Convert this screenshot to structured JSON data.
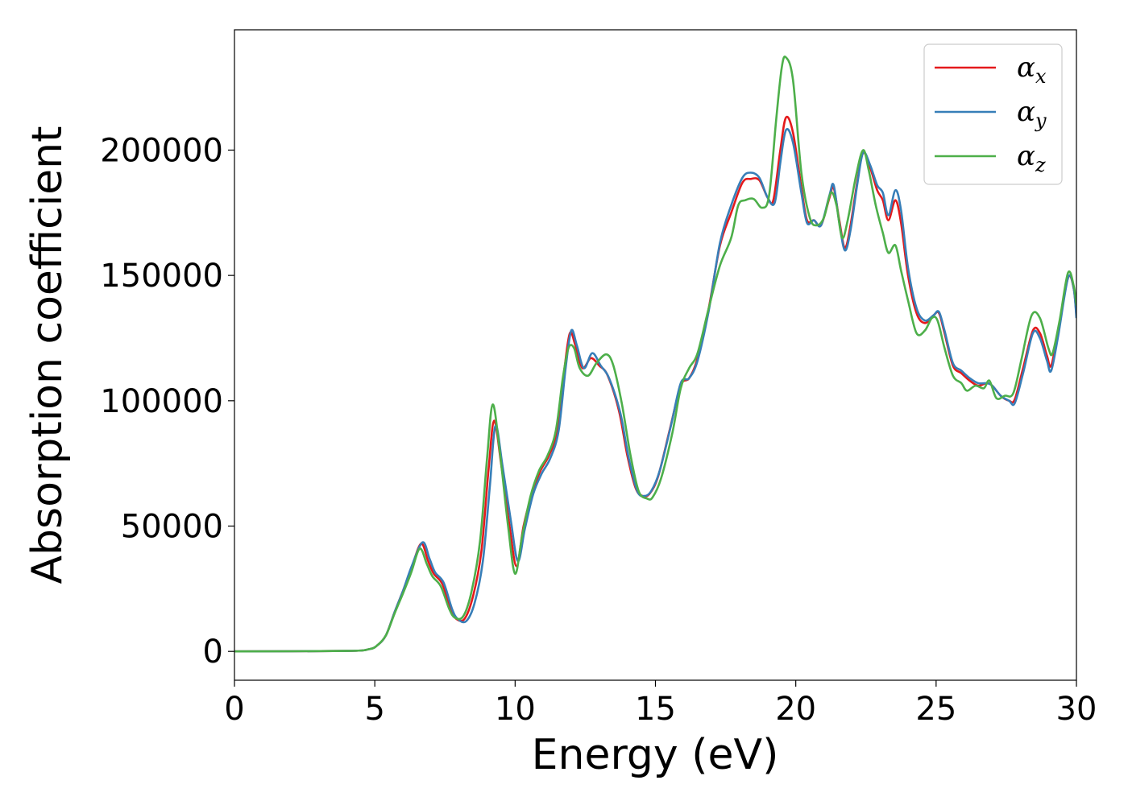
{
  "chart_data": {
    "type": "line",
    "xlabel": "Energy (eV)",
    "ylabel": "Absorption coefficient",
    "xlim": [
      0,
      30
    ],
    "ylim": [
      -11500,
      248000
    ],
    "x_ticks": [
      0,
      5,
      10,
      15,
      20,
      25,
      30
    ],
    "y_ticks": [
      0,
      50000,
      100000,
      150000,
      200000
    ],
    "grid": false,
    "legend_position": "top-right",
    "series": [
      {
        "name": "α",
        "subscript": "x",
        "color": "#e41a1c",
        "points": [
          [
            0,
            0
          ],
          [
            4,
            200
          ],
          [
            4.8,
            900
          ],
          [
            5.1,
            2500
          ],
          [
            5.4,
            6500
          ],
          [
            5.7,
            15500
          ],
          [
            6.0,
            24000
          ],
          [
            6.3,
            33000
          ],
          [
            6.65,
            43000
          ],
          [
            6.9,
            36000
          ],
          [
            7.1,
            31000
          ],
          [
            7.4,
            27000
          ],
          [
            7.7,
            17000
          ],
          [
            7.9,
            13000
          ],
          [
            8.2,
            13000
          ],
          [
            8.5,
            22000
          ],
          [
            8.8,
            40000
          ],
          [
            9.05,
            72000
          ],
          [
            9.25,
            92000
          ],
          [
            9.5,
            75000
          ],
          [
            9.8,
            50000
          ],
          [
            10.05,
            34000
          ],
          [
            10.3,
            50000
          ],
          [
            10.6,
            63000
          ],
          [
            10.9,
            72000
          ],
          [
            11.2,
            78000
          ],
          [
            11.5,
            88000
          ],
          [
            11.75,
            112000
          ],
          [
            11.95,
            127000
          ],
          [
            12.15,
            122000
          ],
          [
            12.4,
            113000
          ],
          [
            12.7,
            117000
          ],
          [
            13.0,
            114000
          ],
          [
            13.3,
            110000
          ],
          [
            13.7,
            96000
          ],
          [
            14.0,
            78000
          ],
          [
            14.3,
            65000
          ],
          [
            14.55,
            62000
          ],
          [
            14.8,
            63000
          ],
          [
            15.1,
            70000
          ],
          [
            15.5,
            88000
          ],
          [
            15.9,
            106000
          ],
          [
            16.2,
            109000
          ],
          [
            16.5,
            117000
          ],
          [
            16.9,
            137000
          ],
          [
            17.3,
            162000
          ],
          [
            17.7,
            175000
          ],
          [
            18.1,
            187000
          ],
          [
            18.4,
            188500
          ],
          [
            18.7,
            188000
          ],
          [
            19.0,
            181000
          ],
          [
            19.2,
            180000
          ],
          [
            19.45,
            200000
          ],
          [
            19.65,
            213000
          ],
          [
            19.9,
            207000
          ],
          [
            20.2,
            185000
          ],
          [
            20.4,
            172000
          ],
          [
            20.65,
            172000
          ],
          [
            20.9,
            170000
          ],
          [
            21.2,
            181000
          ],
          [
            21.35,
            185000
          ],
          [
            21.55,
            172000
          ],
          [
            21.75,
            161000
          ],
          [
            21.95,
            170000
          ],
          [
            22.2,
            188000
          ],
          [
            22.4,
            199000
          ],
          [
            22.65,
            193000
          ],
          [
            22.9,
            184000
          ],
          [
            23.1,
            180000
          ],
          [
            23.3,
            172000
          ],
          [
            23.55,
            180000
          ],
          [
            23.75,
            171000
          ],
          [
            24.0,
            150000
          ],
          [
            24.3,
            135000
          ],
          [
            24.6,
            131000
          ],
          [
            24.9,
            134000
          ],
          [
            25.1,
            135000
          ],
          [
            25.3,
            127000
          ],
          [
            25.6,
            114000
          ],
          [
            25.9,
            111000
          ],
          [
            26.2,
            108000
          ],
          [
            26.5,
            106000
          ],
          [
            26.8,
            107000
          ],
          [
            27.0,
            106000
          ],
          [
            27.3,
            102000
          ],
          [
            27.6,
            100000
          ],
          [
            27.8,
            100500
          ],
          [
            28.1,
            113000
          ],
          [
            28.45,
            128000
          ],
          [
            28.7,
            127000
          ],
          [
            28.95,
            118000
          ],
          [
            29.1,
            114000
          ],
          [
            29.35,
            128000
          ],
          [
            29.7,
            149000
          ],
          [
            29.9,
            145000
          ],
          [
            30,
            134000
          ]
        ]
      },
      {
        "name": "α",
        "subscript": "y",
        "color": "#377eb8",
        "points": [
          [
            0,
            0
          ],
          [
            4,
            200
          ],
          [
            4.8,
            900
          ],
          [
            5.1,
            2500
          ],
          [
            5.4,
            6500
          ],
          [
            5.7,
            15500
          ],
          [
            6.0,
            24000
          ],
          [
            6.3,
            33500
          ],
          [
            6.7,
            43500
          ],
          [
            6.95,
            37000
          ],
          [
            7.15,
            31500
          ],
          [
            7.45,
            27500
          ],
          [
            7.75,
            17000
          ],
          [
            7.95,
            13000
          ],
          [
            8.25,
            12000
          ],
          [
            8.55,
            19000
          ],
          [
            8.85,
            36000
          ],
          [
            9.1,
            66000
          ],
          [
            9.3,
            90000
          ],
          [
            9.55,
            74000
          ],
          [
            9.85,
            52000
          ],
          [
            10.1,
            36000
          ],
          [
            10.35,
            49000
          ],
          [
            10.65,
            63000
          ],
          [
            10.95,
            71000
          ],
          [
            11.25,
            77000
          ],
          [
            11.55,
            88000
          ],
          [
            11.8,
            113000
          ],
          [
            12.0,
            128000
          ],
          [
            12.2,
            122000
          ],
          [
            12.45,
            113000
          ],
          [
            12.75,
            119000
          ],
          [
            13.05,
            114000
          ],
          [
            13.35,
            109000
          ],
          [
            13.75,
            95000
          ],
          [
            14.05,
            77000
          ],
          [
            14.35,
            64000
          ],
          [
            14.6,
            62000
          ],
          [
            14.85,
            64000
          ],
          [
            15.15,
            72000
          ],
          [
            15.55,
            90000
          ],
          [
            15.9,
            107000
          ],
          [
            16.2,
            109000
          ],
          [
            16.5,
            116000
          ],
          [
            16.9,
            136000
          ],
          [
            17.3,
            163000
          ],
          [
            17.7,
            178000
          ],
          [
            18.1,
            189000
          ],
          [
            18.4,
            191000
          ],
          [
            18.7,
            189000
          ],
          [
            19.0,
            181000
          ],
          [
            19.25,
            179000
          ],
          [
            19.45,
            195000
          ],
          [
            19.65,
            208000
          ],
          [
            19.9,
            203000
          ],
          [
            20.2,
            183000
          ],
          [
            20.4,
            171000
          ],
          [
            20.65,
            172000
          ],
          [
            20.9,
            170000
          ],
          [
            21.2,
            182000
          ],
          [
            21.35,
            186000
          ],
          [
            21.55,
            171000
          ],
          [
            21.75,
            160000
          ],
          [
            21.95,
            168000
          ],
          [
            22.2,
            187000
          ],
          [
            22.4,
            199000
          ],
          [
            22.65,
            194000
          ],
          [
            22.9,
            186000
          ],
          [
            23.1,
            183000
          ],
          [
            23.3,
            174000
          ],
          [
            23.55,
            184000
          ],
          [
            23.75,
            176000
          ],
          [
            24.0,
            153000
          ],
          [
            24.3,
            137000
          ],
          [
            24.6,
            132000
          ],
          [
            24.9,
            134000
          ],
          [
            25.1,
            135500
          ],
          [
            25.3,
            128000
          ],
          [
            25.6,
            115000
          ],
          [
            25.9,
            112000
          ],
          [
            26.2,
            109000
          ],
          [
            26.5,
            107000
          ],
          [
            26.8,
            107000
          ],
          [
            27.0,
            106000
          ],
          [
            27.3,
            102000
          ],
          [
            27.6,
            100000
          ],
          [
            27.8,
            99000
          ],
          [
            28.1,
            111000
          ],
          [
            28.45,
            127000
          ],
          [
            28.7,
            125000
          ],
          [
            28.95,
            116000
          ],
          [
            29.1,
            112000
          ],
          [
            29.35,
            126000
          ],
          [
            29.7,
            149000
          ],
          [
            29.9,
            145000
          ],
          [
            30,
            133000
          ]
        ]
      },
      {
        "name": "α",
        "subscript": "z",
        "color": "#4daf4a",
        "points": [
          [
            0,
            0
          ],
          [
            4,
            200
          ],
          [
            4.8,
            900
          ],
          [
            5.1,
            2500
          ],
          [
            5.4,
            6500
          ],
          [
            5.7,
            15000
          ],
          [
            6.0,
            23000
          ],
          [
            6.3,
            31500
          ],
          [
            6.6,
            41000
          ],
          [
            6.85,
            35000
          ],
          [
            7.05,
            30000
          ],
          [
            7.35,
            26000
          ],
          [
            7.65,
            17000
          ],
          [
            7.85,
            13500
          ],
          [
            8.15,
            14000
          ],
          [
            8.45,
            24000
          ],
          [
            8.75,
            44000
          ],
          [
            9.0,
            77000
          ],
          [
            9.2,
            98500
          ],
          [
            9.45,
            80000
          ],
          [
            9.75,
            50000
          ],
          [
            10.0,
            31000
          ],
          [
            10.25,
            46000
          ],
          [
            10.55,
            62000
          ],
          [
            10.85,
            72000
          ],
          [
            11.15,
            78000
          ],
          [
            11.45,
            88000
          ],
          [
            11.7,
            109000
          ],
          [
            11.9,
            121000
          ],
          [
            12.1,
            121000
          ],
          [
            12.3,
            113000
          ],
          [
            12.6,
            110000
          ],
          [
            12.9,
            115000
          ],
          [
            13.25,
            118500
          ],
          [
            13.5,
            114000
          ],
          [
            13.8,
            99000
          ],
          [
            14.1,
            79000
          ],
          [
            14.4,
            64000
          ],
          [
            14.7,
            61000
          ],
          [
            14.9,
            61500
          ],
          [
            15.2,
            69000
          ],
          [
            15.6,
            87000
          ],
          [
            15.9,
            105000
          ],
          [
            16.2,
            113000
          ],
          [
            16.5,
            119000
          ],
          [
            16.9,
            137000
          ],
          [
            17.3,
            154000
          ],
          [
            17.7,
            165000
          ],
          [
            17.95,
            178000
          ],
          [
            18.2,
            180000
          ],
          [
            18.5,
            180500
          ],
          [
            18.8,
            177000
          ],
          [
            19.05,
            182000
          ],
          [
            19.3,
            212000
          ],
          [
            19.5,
            233000
          ],
          [
            19.65,
            237000
          ],
          [
            19.9,
            228000
          ],
          [
            20.2,
            191000
          ],
          [
            20.5,
            173000
          ],
          [
            20.75,
            170000
          ],
          [
            21.0,
            173000
          ],
          [
            21.25,
            183000
          ],
          [
            21.45,
            178000
          ],
          [
            21.65,
            165000
          ],
          [
            21.85,
            172000
          ],
          [
            22.15,
            190000
          ],
          [
            22.4,
            200000
          ],
          [
            22.6,
            192000
          ],
          [
            22.85,
            178000
          ],
          [
            23.1,
            167000
          ],
          [
            23.3,
            159000
          ],
          [
            23.55,
            162000
          ],
          [
            23.75,
            152000
          ],
          [
            24.0,
            140000
          ],
          [
            24.3,
            127000
          ],
          [
            24.6,
            128000
          ],
          [
            24.85,
            133000
          ],
          [
            25.05,
            132000
          ],
          [
            25.3,
            121000
          ],
          [
            25.6,
            110000
          ],
          [
            25.9,
            107000
          ],
          [
            26.1,
            104000
          ],
          [
            26.4,
            106000
          ],
          [
            26.7,
            105000
          ],
          [
            26.9,
            108000
          ],
          [
            27.15,
            101000
          ],
          [
            27.45,
            102000
          ],
          [
            27.75,
            103000
          ],
          [
            28.05,
            117000
          ],
          [
            28.4,
            134000
          ],
          [
            28.7,
            133000
          ],
          [
            29.0,
            121000
          ],
          [
            29.15,
            119000
          ],
          [
            29.4,
            132000
          ],
          [
            29.7,
            151000
          ],
          [
            29.9,
            146000
          ],
          [
            30,
            138000
          ]
        ]
      }
    ]
  }
}
